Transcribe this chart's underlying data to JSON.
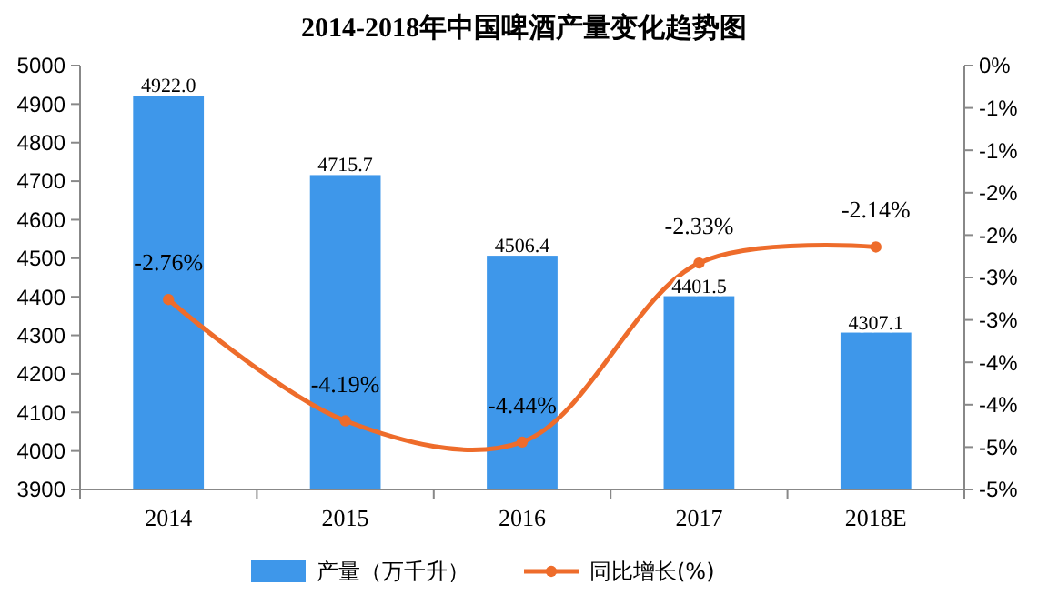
{
  "chart_data": {
    "type": "bar",
    "title": "2014-2018年中国啤酒产量变化趋势图",
    "categories": [
      "2014",
      "2015",
      "2016",
      "2017",
      "2018E"
    ],
    "series": [
      {
        "name": "产量（万千升）",
        "color": "#3e97ea",
        "values": [
          4922.0,
          4715.7,
          4506.4,
          4401.5,
          4307.1
        ],
        "value_labels": [
          "4922.0",
          "4715.7",
          "4506.4",
          "4401.5",
          "4307.1"
        ]
      },
      {
        "name": "同比增长(%)",
        "type": "line",
        "axis": "y2",
        "color": "#ee6c2b",
        "values": [
          -2.76,
          -4.19,
          -4.44,
          -2.33,
          -2.14
        ],
        "value_labels": [
          "-2.76%",
          "-4.19%",
          "-4.44%",
          "-2.33%",
          "-2.14%"
        ]
      }
    ],
    "ylim": [
      3900,
      5000
    ],
    "yticks": [
      3900,
      4000,
      4100,
      4200,
      4300,
      4400,
      4500,
      4600,
      4700,
      4800,
      4900,
      5000
    ],
    "y2lim": [
      -5,
      0
    ],
    "y2ticks": [
      {
        "value": 0,
        "label": "0%"
      },
      {
        "value": -0.5,
        "label": "-1%"
      },
      {
        "value": -1,
        "label": "-1%"
      },
      {
        "value": -1.5,
        "label": "-2%"
      },
      {
        "value": -2,
        "label": "-2%"
      },
      {
        "value": -2.5,
        "label": "-3%"
      },
      {
        "value": -3,
        "label": "-3%"
      },
      {
        "value": -3.5,
        "label": "-4%"
      },
      {
        "value": -4,
        "label": "-4%"
      },
      {
        "value": -4.5,
        "label": "-5%"
      },
      {
        "value": -5,
        "label": "-5%"
      }
    ],
    "marker": "circle",
    "legend": "bottom",
    "grid": false
  }
}
